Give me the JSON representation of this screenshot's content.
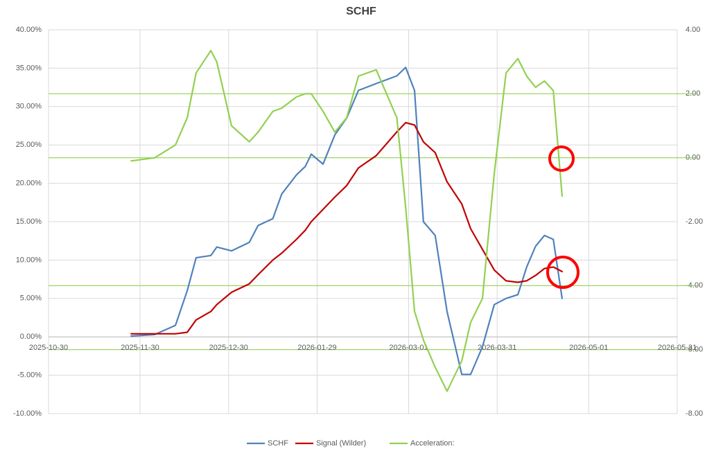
{
  "chart_data": {
    "type": "line",
    "title": "SCHF",
    "x": [
      "2025-11-27",
      "2025-12-05",
      "2025-12-12",
      "2025-12-16",
      "2025-12-19",
      "2025-12-24",
      "2025-12-26",
      "2025-12-31",
      "2026-01-06",
      "2026-01-09",
      "2026-01-14",
      "2026-01-17",
      "2026-01-22",
      "2026-01-25",
      "2026-01-27",
      "2026-01-31",
      "2026-02-04",
      "2026-02-08",
      "2026-02-12",
      "2026-02-18",
      "2026-02-25",
      "2026-02-28",
      "2026-03-03",
      "2026-03-06",
      "2026-03-10",
      "2026-03-14",
      "2026-03-19",
      "2026-03-22",
      "2026-03-26",
      "2026-03-30",
      "2026-04-03",
      "2026-04-07",
      "2026-04-10",
      "2026-04-13",
      "2026-04-16",
      "2026-04-19",
      "2026-04-22"
    ],
    "series": [
      {
        "name": "SCHF",
        "color": "#4f81bd",
        "values": [
          0.1,
          0.3,
          1.5,
          6,
          10.3,
          10.6,
          11.7,
          11.2,
          12.3,
          14.5,
          15.4,
          18.6,
          21.1,
          22.2,
          23.8,
          22.5,
          26.3,
          28.5,
          32.1,
          33.0,
          34.0,
          35.1,
          32.1,
          15.0,
          13.2,
          3.3,
          -4.9,
          -4.9,
          -1.3,
          4.2,
          5.0,
          5.5,
          9.1,
          11.8,
          13.2,
          12.7,
          5.0
        ]
      },
      {
        "name": "Signal (Wilder)",
        "color": "#c00000",
        "values": [
          0.4,
          0.4,
          0.4,
          0.6,
          2.2,
          3.3,
          4.2,
          5.8,
          6.9,
          8.1,
          10.0,
          10.9,
          12.7,
          13.9,
          15.0,
          16.6,
          18.2,
          19.7,
          22.0,
          23.6,
          26.7,
          27.9,
          27.6,
          25.4,
          24.0,
          20.2,
          17.3,
          14.1,
          11.4,
          8.7,
          7.3,
          7.1,
          7.3,
          8.0,
          8.9,
          9.1,
          8.5
        ]
      },
      {
        "name": "Acceleration:",
        "color": "#92d050",
        "axis": "y2",
        "values": [
          -0.1,
          0.0,
          0.4,
          1.25,
          2.65,
          3.35,
          3.0,
          1.0,
          0.5,
          0.8,
          1.45,
          1.55,
          1.9,
          2.0,
          2.0,
          1.45,
          0.8,
          1.25,
          2.55,
          2.75,
          1.25,
          -1.55,
          -4.8,
          -5.7,
          -6.55,
          -7.3,
          -6.35,
          -5.15,
          -4.4,
          -0.5,
          2.65,
          3.1,
          2.55,
          2.2,
          2.4,
          2.1,
          -1.2
        ]
      }
    ],
    "xlim": [
      "2025-10-30",
      "2026-05-31"
    ],
    "xticks": [
      "2025-10-30",
      "2025-11-30",
      "2025-12-30",
      "2026-01-29",
      "2026-03-01",
      "2026-03-31",
      "2026-05-01",
      "2026-05-31"
    ],
    "ylim": [
      -10,
      40
    ],
    "yticks": [
      {
        "value": -10,
        "label": "-10.00%"
      },
      {
        "value": -5,
        "label": "-5.00%"
      },
      {
        "value": 0,
        "label": "0.00%"
      },
      {
        "value": 5,
        "label": "5.00%"
      },
      {
        "value": 10,
        "label": "10.00%"
      },
      {
        "value": 15,
        "label": "15.00%"
      },
      {
        "value": 20,
        "label": "20.00%"
      },
      {
        "value": 25,
        "label": "25.00%"
      },
      {
        "value": 30,
        "label": "30.00%"
      },
      {
        "value": 35,
        "label": "35.00%"
      },
      {
        "value": 40,
        "label": "40.00%"
      }
    ],
    "y2lim": [
      -8,
      4
    ],
    "y2ticks": [
      {
        "value": -8,
        "label": "-8.00"
      },
      {
        "value": -6,
        "label": "-6.00"
      },
      {
        "value": -4,
        "label": "-4.00"
      },
      {
        "value": -2,
        "label": "-2.00"
      },
      {
        "value": 0,
        "label": "0.00"
      },
      {
        "value": 2,
        "label": "2.00"
      },
      {
        "value": 4,
        "label": "4.00"
      }
    ],
    "y2_reference_lines": [
      2,
      0,
      -4,
      -6
    ],
    "reference_color": "#92d050",
    "grid": true,
    "legend": "bottom"
  }
}
